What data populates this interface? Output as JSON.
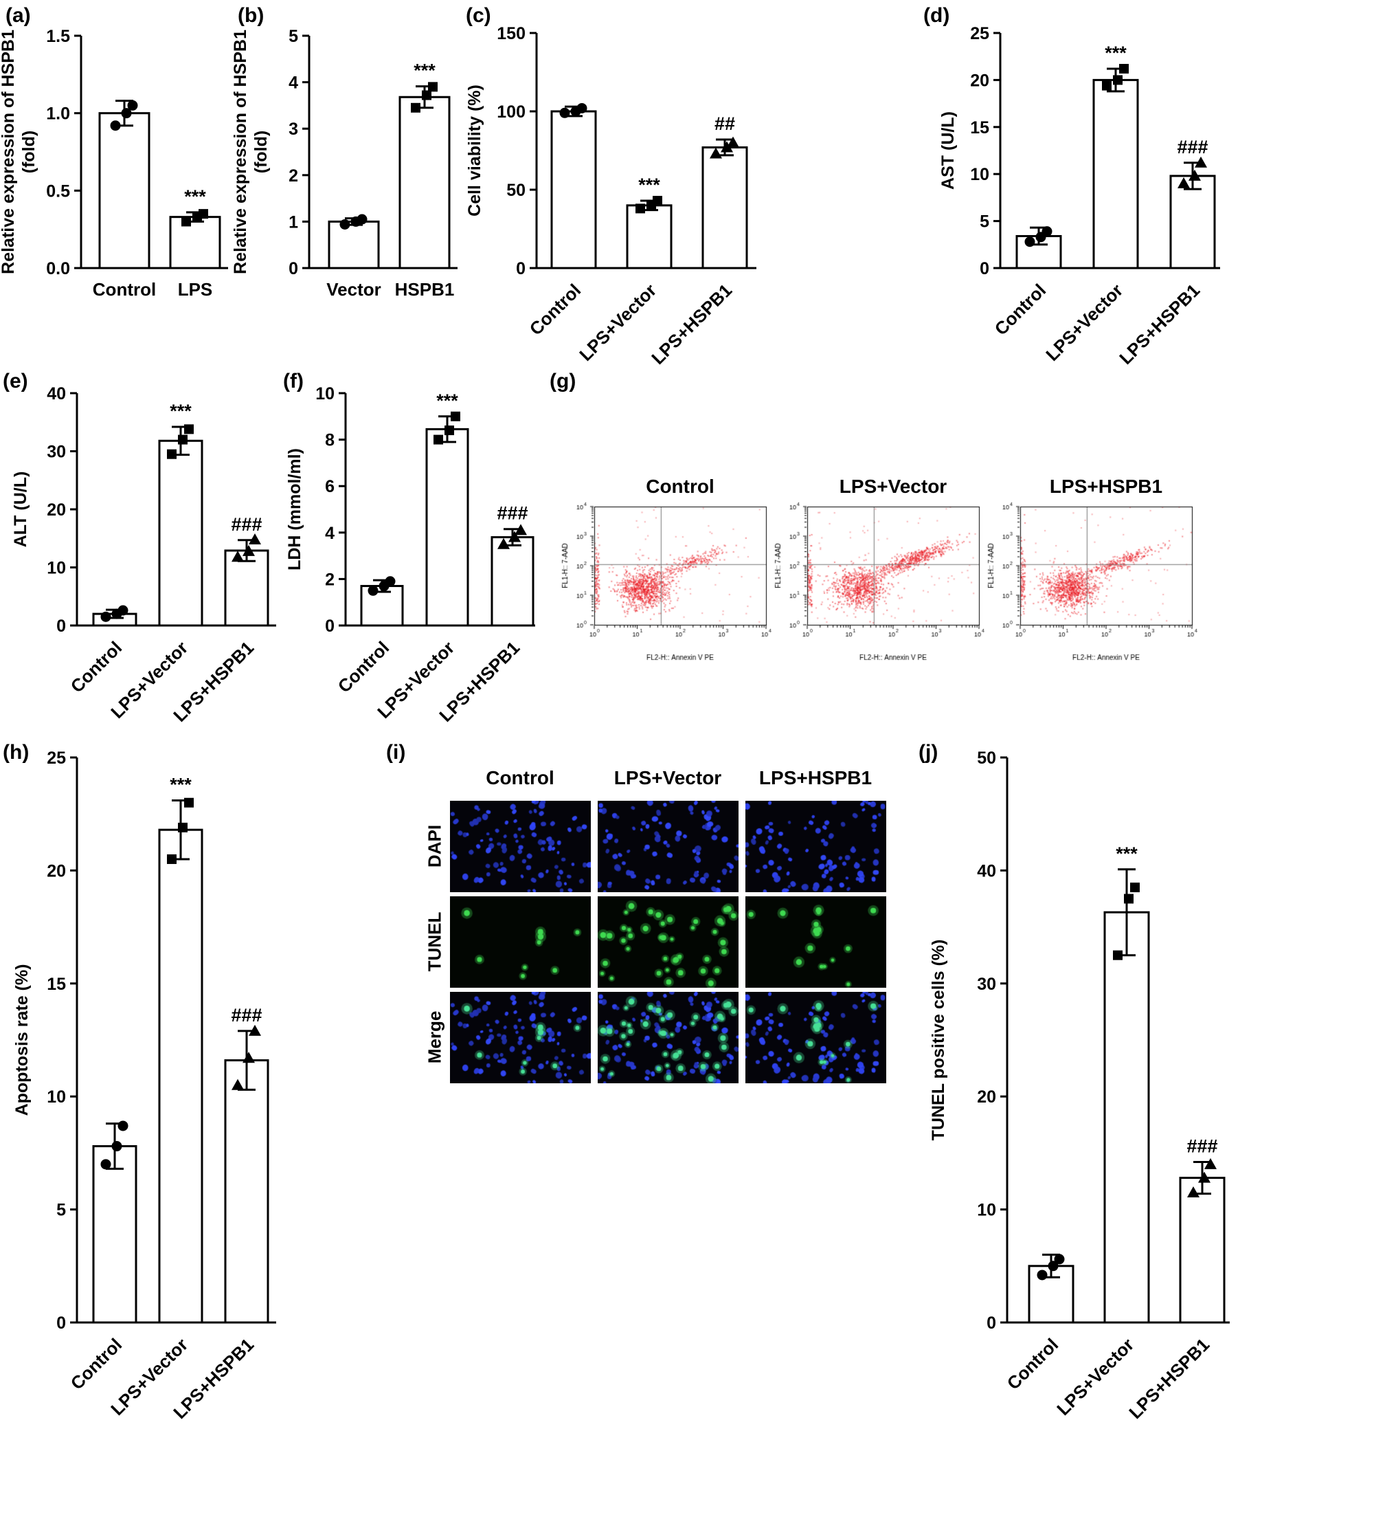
{
  "chart_data": [
    {
      "id": "a",
      "panel_label": "(a)",
      "type": "bar",
      "ylabel": "Relative expression of HSPB1 (fold)",
      "ylabel_lines": [
        "Relative expression of HSPB1",
        "(fold)"
      ],
      "categories": [
        "Control",
        "LPS"
      ],
      "values": [
        1.0,
        0.33
      ],
      "errors": [
        0.08,
        0.03
      ],
      "points": [
        [
          0.92,
          1.0,
          1.05
        ],
        [
          0.3,
          0.33,
          0.35
        ]
      ],
      "markers": [
        "circle",
        "square"
      ],
      "annotations": [
        "",
        "***"
      ],
      "ylim": [
        0,
        1.5
      ],
      "yticks": [
        "0.0",
        "0.5",
        "1.0",
        "1.5"
      ],
      "bar_fill": "#ffffff",
      "bar_stroke": "#000000"
    },
    {
      "id": "b",
      "panel_label": "(b)",
      "type": "bar",
      "ylabel": "Relative expression of HSPB1 (fold)",
      "ylabel_lines": [
        "Relative expression of HSPB1",
        "(fold)"
      ],
      "categories": [
        "Vector",
        "HSPB1"
      ],
      "values": [
        1.0,
        3.68
      ],
      "errors": [
        0.07,
        0.23
      ],
      "points": [
        [
          0.94,
          1.0,
          1.05
        ],
        [
          3.45,
          3.72,
          3.9
        ]
      ],
      "markers": [
        "circle",
        "square"
      ],
      "annotations": [
        "",
        "***"
      ],
      "ylim": [
        0,
        5
      ],
      "yticks": [
        "0",
        "1",
        "2",
        "3",
        "4",
        "5"
      ],
      "bar_fill": "#ffffff",
      "bar_stroke": "#000000"
    },
    {
      "id": "c",
      "panel_label": "(c)",
      "type": "bar",
      "ylabel": "Cell viability (%)",
      "ylabel_lines": [
        "Cell viability (%)"
      ],
      "categories": [
        "Control",
        "LPS+Vector",
        "LPS+HSPB1"
      ],
      "values": [
        100,
        40,
        77
      ],
      "errors": [
        3,
        3,
        5
      ],
      "points": [
        [
          99,
          100,
          102
        ],
        [
          38,
          40,
          43
        ],
        [
          73,
          77,
          80
        ]
      ],
      "markers": [
        "circle",
        "square",
        "triangle"
      ],
      "annotations": [
        "",
        "***",
        "##"
      ],
      "ylim": [
        0,
        150
      ],
      "yticks": [
        "0",
        "50",
        "100",
        "150"
      ],
      "bar_fill": "#ffffff",
      "bar_stroke": "#000000"
    },
    {
      "id": "d",
      "panel_label": "(d)",
      "type": "bar",
      "ylabel": "AST (U/L)",
      "ylabel_lines": [
        "AST (U/L)"
      ],
      "categories": [
        "Control",
        "LPS+Vector",
        "LPS+HSPB1"
      ],
      "values": [
        3.4,
        20,
        9.8
      ],
      "errors": [
        0.9,
        1.2,
        1.4
      ],
      "points": [
        [
          2.8,
          3.3,
          3.9
        ],
        [
          19.4,
          20,
          21.2
        ],
        [
          9.0,
          9.8,
          11.2
        ]
      ],
      "markers": [
        "circle",
        "square",
        "triangle"
      ],
      "annotations": [
        "",
        "***",
        "###"
      ],
      "ylim": [
        0,
        25
      ],
      "yticks": [
        "0",
        "5",
        "10",
        "15",
        "20",
        "25"
      ],
      "bar_fill": "#ffffff",
      "bar_stroke": "#000000"
    },
    {
      "id": "e",
      "panel_label": "(e)",
      "type": "bar",
      "ylabel": "ALT (U/L)",
      "ylabel_lines": [
        "ALT (U/L)"
      ],
      "categories": [
        "Control",
        "LPS+Vector",
        "LPS+HSPB1"
      ],
      "values": [
        2.0,
        31.8,
        12.9
      ],
      "errors": [
        0.7,
        2.4,
        1.8
      ],
      "points": [
        [
          1.5,
          2.0,
          2.6
        ],
        [
          29.5,
          32.0,
          33.8
        ],
        [
          11.8,
          12.8,
          14.8
        ]
      ],
      "markers": [
        "circle",
        "square",
        "triangle"
      ],
      "annotations": [
        "",
        "***",
        "###"
      ],
      "ylim": [
        0,
        40
      ],
      "yticks": [
        "0",
        "10",
        "20",
        "30",
        "40"
      ],
      "bar_fill": "#ffffff",
      "bar_stroke": "#000000"
    },
    {
      "id": "f",
      "panel_label": "(f)",
      "type": "bar",
      "ylabel": "LDH (mmol/ml)",
      "ylabel_lines": [
        "LDH (mmol/ml)"
      ],
      "categories": [
        "Control",
        "LPS+Vector",
        "LPS+HSPB1"
      ],
      "values": [
        1.7,
        8.45,
        3.8
      ],
      "errors": [
        0.25,
        0.55,
        0.35
      ],
      "points": [
        [
          1.5,
          1.7,
          1.9
        ],
        [
          8.0,
          8.4,
          9.0
        ],
        [
          3.5,
          3.8,
          4.1
        ]
      ],
      "markers": [
        "circle",
        "square",
        "triangle"
      ],
      "annotations": [
        "",
        "***",
        "###"
      ],
      "ylim": [
        0,
        10
      ],
      "yticks": [
        "0",
        "2",
        "4",
        "6",
        "8",
        "10"
      ],
      "bar_fill": "#ffffff",
      "bar_stroke": "#000000"
    },
    {
      "id": "g",
      "panel_label": "(g)",
      "type": "scatter",
      "subtype": "flow_cytometry",
      "xlabel": "FL2-H:: Annexin V PE",
      "ylabel": "FL1-H:: 7-AAD",
      "log_range": [
        0,
        4
      ],
      "tick_exponents": [
        0,
        1,
        2,
        3,
        4
      ],
      "quadrant_x": 1.55,
      "quadrant_y": 2.05,
      "dot_color": "#ec1c24",
      "plots": [
        {
          "title": "Control",
          "seed": 11,
          "live_cluster": {
            "cx": 1.15,
            "cy": 1.22,
            "sx": 0.3,
            "sy": 0.33,
            "n": 900
          },
          "apoptotic_cluster": {
            "cx": 2.25,
            "cy": 2.08,
            "n": 240
          },
          "edge_n": 110,
          "background_n": 60
        },
        {
          "title": "LPS+Vector",
          "seed": 22,
          "live_cluster": {
            "cx": 1.2,
            "cy": 1.24,
            "sx": 0.32,
            "sy": 0.34,
            "n": 780
          },
          "apoptotic_cluster": {
            "cx": 2.45,
            "cy": 2.2,
            "n": 520
          },
          "edge_n": 100,
          "background_n": 80
        },
        {
          "title": "LPS+HSPB1",
          "seed": 33,
          "live_cluster": {
            "cx": 1.15,
            "cy": 1.22,
            "sx": 0.3,
            "sy": 0.32,
            "n": 880
          },
          "apoptotic_cluster": {
            "cx": 2.3,
            "cy": 2.1,
            "n": 300
          },
          "edge_n": 110,
          "background_n": 60
        }
      ]
    },
    {
      "id": "h",
      "panel_label": "(h)",
      "type": "bar",
      "ylabel": "Apoptosis rate (%)",
      "ylabel_lines": [
        "Apoptosis rate (%)"
      ],
      "categories": [
        "Control",
        "LPS+Vector",
        "LPS+HSPB1"
      ],
      "values": [
        7.8,
        21.8,
        11.6
      ],
      "errors": [
        1.0,
        1.3,
        1.3
      ],
      "points": [
        [
          7.0,
          7.8,
          8.7
        ],
        [
          20.5,
          21.9,
          23.0
        ],
        [
          10.5,
          11.7,
          12.9
        ]
      ],
      "markers": [
        "circle",
        "square",
        "triangle"
      ],
      "annotations": [
        "",
        "***",
        "###"
      ],
      "ylim": [
        0,
        25
      ],
      "yticks": [
        "0",
        "5",
        "10",
        "15",
        "20",
        "25"
      ],
      "bar_fill": "#ffffff",
      "bar_stroke": "#000000"
    },
    {
      "id": "i",
      "panel_label": "(i)",
      "type": "microscopy_grid",
      "columns": [
        "Control",
        "LPS+Vector",
        "LPS+HSPB1"
      ],
      "rows": [
        "DAPI",
        "TUNEL",
        "Merge"
      ],
      "dapi_color": "#2a3cd8",
      "tunel_color": "#3eda50",
      "merge_tunel_color": "#46e196",
      "dapi_cell_count": 95,
      "tunel_counts": [
        9,
        42,
        16
      ],
      "seeds": [
        5,
        6,
        7
      ]
    },
    {
      "id": "j",
      "panel_label": "(j)",
      "type": "bar",
      "ylabel": "TUNEL positive cells (%)",
      "ylabel_lines": [
        "TUNEL positive cells (%)"
      ],
      "categories": [
        "Control",
        "LPS+Vector",
        "LPS+HSPB1"
      ],
      "values": [
        5.0,
        36.3,
        12.8
      ],
      "errors": [
        1.0,
        3.8,
        1.4
      ],
      "points": [
        [
          4.2,
          5.0,
          5.6
        ],
        [
          32.5,
          37.5,
          38.5
        ],
        [
          11.5,
          12.8,
          14.0
        ]
      ],
      "markers": [
        "circle",
        "square",
        "triangle"
      ],
      "annotations": [
        "",
        "***",
        "###"
      ],
      "ylim": [
        0,
        50
      ],
      "yticks": [
        "0",
        "10",
        "20",
        "30",
        "40",
        "50"
      ],
      "bar_fill": "#ffffff",
      "bar_stroke": "#000000"
    }
  ]
}
